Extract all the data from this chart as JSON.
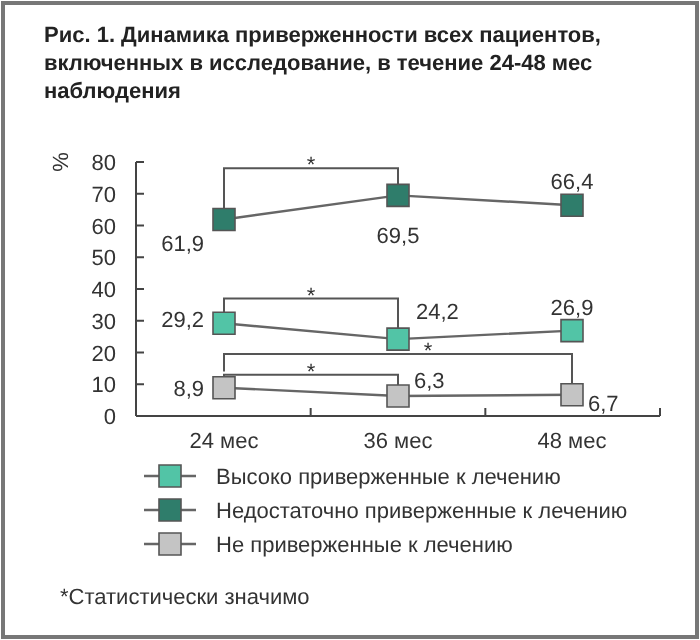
{
  "chart_data": {
    "type": "line",
    "title": "Рис. 1. Динамика приверженности всех пациентов, включенных в исследование, в течение 24-48 мес наблюдения",
    "ylabel": "%",
    "categories": [
      "24 мес",
      "36 мес",
      "48 мес"
    ],
    "series": [
      {
        "name": "Высоко приверженные к лечению",
        "color": "#52c4a6",
        "values": [
          29.2,
          24.2,
          26.9
        ],
        "value_labels": [
          "29,2",
          "24,2",
          "26,9"
        ]
      },
      {
        "name": "Недостаточно приверженные к лечению",
        "color": "#2f7d6b",
        "values": [
          61.9,
          69.5,
          66.4
        ],
        "value_labels": [
          "61,9",
          "69,5",
          "66,4"
        ]
      },
      {
        "name": "Не приверженные к лечению",
        "color": "#c4c4c4",
        "values": [
          8.9,
          6.3,
          6.7
        ],
        "value_labels": [
          "8,9",
          "6,3",
          "6,7"
        ]
      }
    ],
    "ylim": [
      0,
      80
    ],
    "yticks": [
      0,
      10,
      20,
      30,
      40,
      50,
      60,
      70,
      80
    ],
    "grid": false,
    "legend": "bottom",
    "marker": "square",
    "line_style": "solid",
    "annotations": [
      "*",
      "*",
      "*",
      "*",
      "*Статистически значимо"
    ]
  }
}
